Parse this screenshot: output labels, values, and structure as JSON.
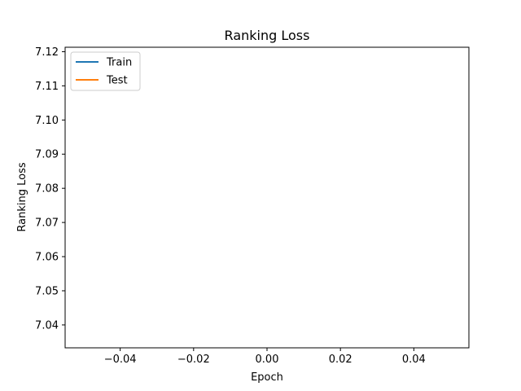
{
  "chart_data": {
    "type": "line",
    "title": "Ranking Loss",
    "xlabel": "Epoch",
    "ylabel": "Ranking Loss",
    "xlim": [
      -0.055,
      0.055
    ],
    "ylim": [
      7.0333,
      7.1213
    ],
    "xticks": [
      {
        "value": -0.04,
        "label": "−0.04"
      },
      {
        "value": -0.02,
        "label": "−0.02"
      },
      {
        "value": 0.0,
        "label": "0.00"
      },
      {
        "value": 0.02,
        "label": "0.02"
      },
      {
        "value": 0.04,
        "label": "0.04"
      }
    ],
    "yticks": [
      {
        "value": 7.04,
        "label": "7.04"
      },
      {
        "value": 7.05,
        "label": "7.05"
      },
      {
        "value": 7.06,
        "label": "7.06"
      },
      {
        "value": 7.07,
        "label": "7.07"
      },
      {
        "value": 7.08,
        "label": "7.08"
      },
      {
        "value": 7.09,
        "label": "7.09"
      },
      {
        "value": 7.1,
        "label": "7.10"
      },
      {
        "value": 7.11,
        "label": "7.11"
      },
      {
        "value": 7.12,
        "label": "7.12"
      }
    ],
    "grid": false,
    "legend_position": "upper-left",
    "series": [
      {
        "name": "Train",
        "color": "#1f77b4",
        "x": [],
        "y": []
      },
      {
        "name": "Test",
        "color": "#ff7f0e",
        "x": [],
        "y": []
      }
    ]
  }
}
